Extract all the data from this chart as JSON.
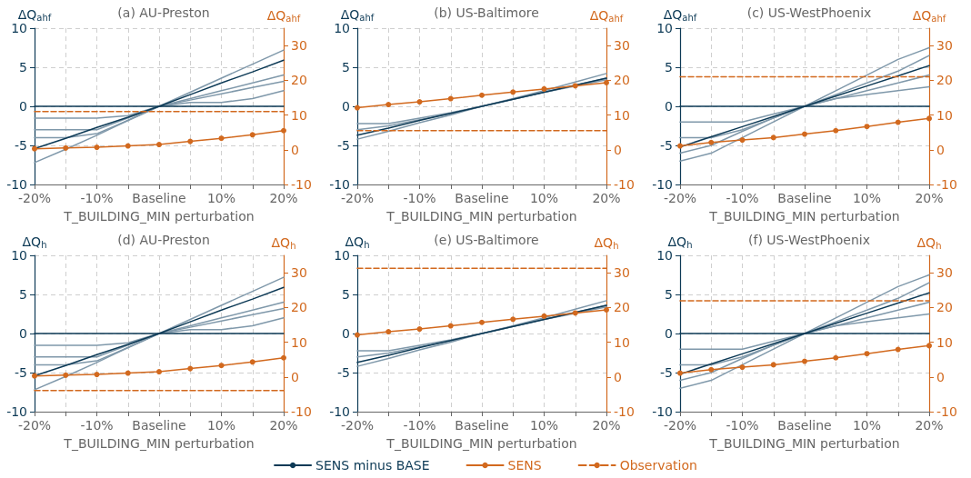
{
  "chart_data": [
    {
      "type": "line",
      "title": "(a) AU-Preston",
      "xlabel": "T_BUILDING_MIN perturbation",
      "ylabel": "ΔQ$_{ahf}$",
      "y2label": "ΔQ$_{ahf}$",
      "categories": [
        "-20%",
        null,
        "-10%",
        null,
        "Baseline",
        null,
        "10%",
        null,
        "20%"
      ],
      "ylim": [
        -10,
        10
      ],
      "yticks": [
        -10,
        -5,
        0,
        5,
        10
      ],
      "y2lim": [
        -10,
        35
      ],
      "y2ticks": [
        -10,
        0,
        10,
        20,
        30
      ],
      "grid": true,
      "marker": "none",
      "series": [
        {
          "color": "#7f98aa",
          "values": [
            -7.2,
            -5.5,
            -3.7,
            -1.8,
            0,
            1.8,
            3.6,
            5.4,
            7.2
          ]
        },
        {
          "color": "#7f98aa",
          "values": [
            -1.5,
            -1.5,
            -1.5,
            -1.2,
            0,
            1,
            2,
            3,
            4
          ]
        },
        {
          "color": "#7f98aa",
          "values": [
            -4,
            -4,
            -3.5,
            -1.8,
            0,
            0.8,
            1.6,
            2.4,
            3.2
          ]
        },
        {
          "color": "#7f98aa",
          "values": [
            -3,
            -3,
            -3,
            -1.5,
            0,
            0.5,
            0.5,
            1,
            2
          ]
        },
        {
          "color": "#0d3a56",
          "values": [
            0,
            0,
            0,
            0,
            0,
            0,
            0,
            0,
            0
          ]
        },
        {
          "color": "#0d3a56",
          "values": [
            -5.4,
            -4.1,
            -2.7,
            -1.4,
            0,
            1.5,
            3,
            4.4,
            5.9
          ]
        },
        {
          "color": "#d2691e",
          "axis": "y2",
          "marker": "circle",
          "values": [
            0.3,
            0.5,
            0.7,
            1.1,
            1.5,
            2.4,
            3.3,
            4.3,
            5.5
          ]
        },
        {
          "color": "#d2691e",
          "axis": "y2",
          "line_style": "dashed",
          "values": [
            11,
            11,
            11,
            11,
            11,
            11,
            11,
            11,
            11
          ]
        }
      ]
    },
    {
      "type": "line",
      "title": "(b) US-Baltimore",
      "xlabel": "T_BUILDING_MIN perturbation",
      "ylabel": "ΔQ$_{ahf}$",
      "y2label": "ΔQ$_{ahf}$",
      "categories": [
        "-20%",
        null,
        "-10%",
        null,
        "Baseline",
        null,
        "10%",
        null,
        "20%"
      ],
      "ylim": [
        -10,
        10
      ],
      "yticks": [
        -10,
        -5,
        0,
        5,
        10
      ],
      "y2lim": [
        -10,
        35
      ],
      "y2ticks": [
        -10,
        0,
        10,
        20,
        30
      ],
      "grid": true,
      "marker": "none",
      "series": [
        {
          "color": "#7f98aa",
          "values": [
            -4.2,
            -3.2,
            -2.1,
            -1.1,
            0,
            1,
            2,
            3.1,
            4.2
          ]
        },
        {
          "color": "#7f98aa",
          "values": [
            -2.2,
            -2.2,
            -1.5,
            -0.8,
            0,
            0.9,
            1.8,
            2.6,
            3.4
          ]
        },
        {
          "color": "#7f98aa",
          "values": [
            -3,
            -2.5,
            -1.7,
            -0.9,
            0,
            0.9,
            1.8,
            2.7,
            3.6
          ]
        },
        {
          "color": "#0d3a56",
          "values": [
            -3.7,
            -2.8,
            -1.8,
            -0.9,
            0,
            0.9,
            1.8,
            2.7,
            3.6
          ]
        },
        {
          "color": "#d2691e",
          "axis": "y2",
          "marker": "circle",
          "values": [
            12.1,
            13,
            13.8,
            14.7,
            15.7,
            16.6,
            17.5,
            18.4,
            19.3
          ]
        },
        {
          "color": "#d2691e",
          "axis": "y2",
          "line_style": "dashed",
          "values": [
            5.5,
            5.5,
            5.5,
            5.5,
            5.5,
            5.5,
            5.5,
            5.5,
            5.5
          ]
        }
      ]
    },
    {
      "type": "line",
      "title": "(c) US-WestPhoenix",
      "xlabel": "T_BUILDING_MIN perturbation",
      "ylabel": "ΔQ$_{ahf}$",
      "y2label": "ΔQ$_{ahf}$",
      "categories": [
        "-20%",
        null,
        "-10%",
        null,
        "Baseline",
        null,
        "10%",
        null,
        "20%"
      ],
      "ylim": [
        -10,
        10
      ],
      "yticks": [
        -10,
        -5,
        0,
        5,
        10
      ],
      "y2lim": [
        -10,
        35
      ],
      "y2ticks": [
        -10,
        0,
        10,
        20,
        30
      ],
      "grid": true,
      "marker": "none",
      "series": [
        {
          "color": "#7f98aa",
          "values": [
            -7,
            -6,
            -4,
            -2,
            0,
            2,
            4,
            6,
            7.5
          ]
        },
        {
          "color": "#7f98aa",
          "values": [
            -2,
            -2,
            -2,
            -1,
            0,
            1,
            2,
            3,
            4
          ]
        },
        {
          "color": "#7f98aa",
          "values": [
            -4,
            -4,
            -3,
            -1.5,
            0,
            1,
            1.5,
            2,
            2.5
          ]
        },
        {
          "color": "#7f98aa",
          "values": [
            -6,
            -5,
            -3.2,
            -1.5,
            0,
            1.5,
            3,
            4.5,
            6.5
          ]
        },
        {
          "color": "#0d3a56",
          "values": [
            0,
            0,
            0,
            0,
            0,
            0,
            0,
            0,
            0
          ]
        },
        {
          "color": "#0d3a56",
          "values": [
            -5.2,
            -3.9,
            -2.6,
            -1.3,
            0,
            1.3,
            2.6,
            3.9,
            5.2
          ]
        },
        {
          "color": "#d2691e",
          "axis": "y2",
          "marker": "circle",
          "values": [
            1.1,
            2.1,
            2.8,
            3.5,
            4.5,
            5.5,
            6.7,
            7.9,
            9
          ]
        },
        {
          "color": "#d2691e",
          "axis": "y2",
          "line_style": "dashed",
          "values": [
            21,
            21,
            21,
            21,
            21,
            21,
            21,
            21,
            21
          ]
        }
      ]
    },
    {
      "type": "line",
      "title": "(d) AU-Preston",
      "xlabel": "T_BUILDING_MIN perturbation",
      "ylabel": "ΔQ$_{h}$",
      "y2label": "ΔQ$_{h}$",
      "categories": [
        "-20%",
        null,
        "-10%",
        null,
        "Baseline",
        null,
        "10%",
        null,
        "20%"
      ],
      "ylim": [
        -10,
        10
      ],
      "yticks": [
        -10,
        -5,
        0,
        5,
        10
      ],
      "y2lim": [
        -10,
        35
      ],
      "y2ticks": [
        -10,
        0,
        10,
        20,
        30
      ],
      "grid": true,
      "marker": "none",
      "series": [
        {
          "color": "#7f98aa",
          "values": [
            -7.2,
            -5.5,
            -3.7,
            -1.8,
            0,
            1.8,
            3.6,
            5.4,
            7.2
          ]
        },
        {
          "color": "#7f98aa",
          "values": [
            -1.5,
            -1.5,
            -1.5,
            -1.2,
            0,
            1,
            2,
            3,
            4
          ]
        },
        {
          "color": "#7f98aa",
          "values": [
            -4,
            -4,
            -3.5,
            -1.8,
            0,
            0.8,
            1.6,
            2.4,
            3.2
          ]
        },
        {
          "color": "#7f98aa",
          "values": [
            -3,
            -3,
            -3,
            -1.5,
            0,
            0.5,
            0.5,
            1,
            2
          ]
        },
        {
          "color": "#0d3a56",
          "values": [
            0,
            0,
            0,
            0,
            0,
            0,
            0,
            0,
            0
          ]
        },
        {
          "color": "#0d3a56",
          "values": [
            -5.4,
            -4.1,
            -2.7,
            -1.4,
            0,
            1.5,
            3,
            4.4,
            5.9
          ]
        },
        {
          "color": "#d2691e",
          "axis": "y2",
          "marker": "circle",
          "values": [
            0.3,
            0.5,
            0.7,
            1.1,
            1.5,
            2.4,
            3.3,
            4.3,
            5.5
          ]
        },
        {
          "color": "#d2691e",
          "axis": "y2",
          "line_style": "dashed",
          "values": [
            -3.9,
            -3.9,
            -3.9,
            -3.9,
            -3.9,
            -3.9,
            -3.9,
            -3.9,
            -3.9
          ]
        }
      ]
    },
    {
      "type": "line",
      "title": "(e) US-Baltimore",
      "xlabel": "T_BUILDING_MIN perturbation",
      "ylabel": "ΔQ$_{h}$",
      "y2label": "ΔQ$_{h}$",
      "categories": [
        "-20%",
        null,
        "-10%",
        null,
        "Baseline",
        null,
        "10%",
        null,
        "20%"
      ],
      "ylim": [
        -10,
        10
      ],
      "yticks": [
        -10,
        -5,
        0,
        5,
        10
      ],
      "y2lim": [
        -10,
        35
      ],
      "y2ticks": [
        -10,
        0,
        10,
        20,
        30
      ],
      "grid": true,
      "legend": "bottom",
      "marker": "none",
      "series": [
        {
          "color": "#7f98aa",
          "values": [
            -4.2,
            -3.2,
            -2.1,
            -1.1,
            0,
            1,
            2,
            3.1,
            4.2
          ]
        },
        {
          "color": "#7f98aa",
          "values": [
            -2.2,
            -2.2,
            -1.5,
            -0.8,
            0,
            0.9,
            1.8,
            2.6,
            3.4
          ]
        },
        {
          "color": "#7f98aa",
          "values": [
            -3,
            -2.5,
            -1.7,
            -0.9,
            0,
            0.9,
            1.8,
            2.7,
            3.6
          ]
        },
        {
          "name": "SENS minus BASE",
          "color": "#0d3a56",
          "values": [
            -3.7,
            -2.8,
            -1.8,
            -0.9,
            0,
            0.9,
            1.8,
            2.7,
            3.6
          ]
        },
        {
          "name": "SENS",
          "color": "#d2691e",
          "axis": "y2",
          "marker": "circle",
          "values": [
            12.1,
            13,
            13.8,
            14.7,
            15.7,
            16.6,
            17.5,
            18.4,
            19.3
          ]
        },
        {
          "name": "Observation",
          "color": "#d2691e",
          "axis": "y2",
          "line_style": "dashed",
          "values": [
            31.3,
            31.3,
            31.3,
            31.3,
            31.3,
            31.3,
            31.3,
            31.3,
            31.3
          ]
        }
      ]
    },
    {
      "type": "line",
      "title": "(f) US-WestPhoenix",
      "xlabel": "T_BUILDING_MIN perturbation",
      "ylabel": "ΔQ$_{h}$",
      "y2label": "ΔQ$_{h}$",
      "categories": [
        "-20%",
        null,
        "-10%",
        null,
        "Baseline",
        null,
        "10%",
        null,
        "20%"
      ],
      "ylim": [
        -10,
        10
      ],
      "yticks": [
        -10,
        -5,
        0,
        5,
        10
      ],
      "y2lim": [
        -10,
        35
      ],
      "y2ticks": [
        -10,
        0,
        10,
        20,
        30
      ],
      "grid": true,
      "marker": "none",
      "series": [
        {
          "color": "#7f98aa",
          "values": [
            -7,
            -6,
            -4,
            -2,
            0,
            2,
            4,
            6,
            7.5
          ]
        },
        {
          "color": "#7f98aa",
          "values": [
            -2,
            -2,
            -2,
            -1,
            0,
            1,
            2,
            3,
            4
          ]
        },
        {
          "color": "#7f98aa",
          "values": [
            -4,
            -4,
            -3,
            -1.5,
            0,
            1,
            1.5,
            2,
            2.5
          ]
        },
        {
          "color": "#7f98aa",
          "values": [
            -6,
            -5,
            -3.2,
            -1.5,
            0,
            1.5,
            3,
            4.5,
            6.5
          ]
        },
        {
          "color": "#0d3a56",
          "values": [
            0,
            0,
            0,
            0,
            0,
            0,
            0,
            0,
            0
          ]
        },
        {
          "color": "#0d3a56",
          "values": [
            -5.2,
            -3.9,
            -2.6,
            -1.3,
            0,
            1.3,
            2.6,
            3.9,
            5.2
          ]
        },
        {
          "color": "#d2691e",
          "axis": "y2",
          "marker": "circle",
          "values": [
            1.1,
            2.1,
            2.8,
            3.5,
            4.5,
            5.5,
            6.7,
            7.9,
            9
          ]
        },
        {
          "color": "#d2691e",
          "axis": "y2",
          "line_style": "dashed",
          "values": [
            21.9,
            21.9,
            21.9,
            21.9,
            21.9,
            21.9,
            21.9,
            21.9,
            21.9
          ]
        }
      ]
    }
  ]
}
